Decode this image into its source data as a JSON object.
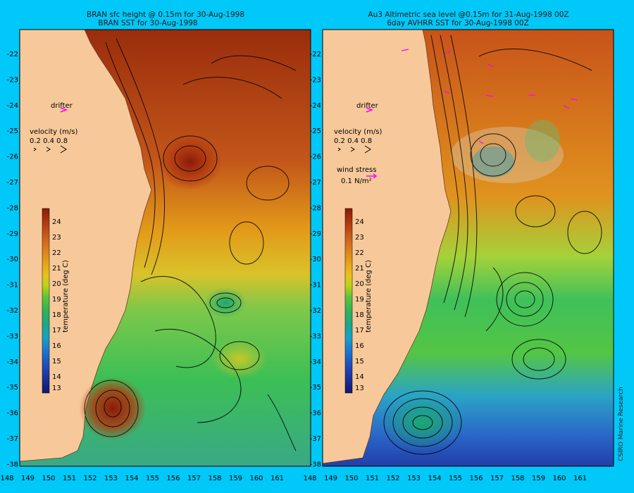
{
  "left_panel": {
    "title_line1": "BRAN sfc height @ 0.15m for 30-Aug-1998",
    "title_line2": "BRAN SST for 30-Aug-1998",
    "legend": {
      "drifter": "drifter",
      "velocity_title": "velocity (m/s)",
      "velocity_scale": "0.2 0.4 0.8"
    },
    "colorbar": {
      "label": "temperature (deg C)",
      "ticks": [
        "24",
        "23",
        "22",
        "21",
        "20",
        "19",
        "18",
        "17",
        "16",
        "15",
        "14",
        "13"
      ]
    }
  },
  "right_panel": {
    "title_line1": "Au3 Altimetric sea level  @0.15m  for 31-Aug-1998 00Z",
    "title_line2": "6day AVHRR SST for 30-Aug-1998 00Z",
    "legend": {
      "drifter": "drifter",
      "velocity_title": "velocity (m/s)",
      "velocity_scale": "0.2 0.4 0.8",
      "wind_title": "wind stress",
      "wind_scale": "0.1 N/m²"
    },
    "colorbar": {
      "label": "temperature (deg C)",
      "ticks": [
        "24",
        "23",
        "22",
        "21",
        "20",
        "19",
        "18",
        "17",
        "16",
        "15",
        "14",
        "13"
      ]
    },
    "credit": "CSIRO Marine Research"
  },
  "axes": {
    "lat_ticks": [
      "-22",
      "-23",
      "-24",
      "-25",
      "-26",
      "-27",
      "-28",
      "-29",
      "-30",
      "-31",
      "-32",
      "-33",
      "-34",
      "-35",
      "-36",
      "-37",
      "-38"
    ],
    "lon_ticks_left": [
      "148",
      "149",
      "150",
      "151",
      "152",
      "153",
      "154",
      "155",
      "156",
      "157",
      "158",
      "159",
      "160",
      "161"
    ],
    "lon_ticks_right": [
      "148",
      "149",
      "150",
      "151",
      "152",
      "153",
      "154",
      "155",
      "156",
      "157",
      "158",
      "159",
      "160",
      "161"
    ]
  },
  "colors": {
    "frame": "#00c8f8",
    "land": "#f7c99a",
    "drifter": "#ff00ff",
    "wind": "#ff00ff"
  }
}
